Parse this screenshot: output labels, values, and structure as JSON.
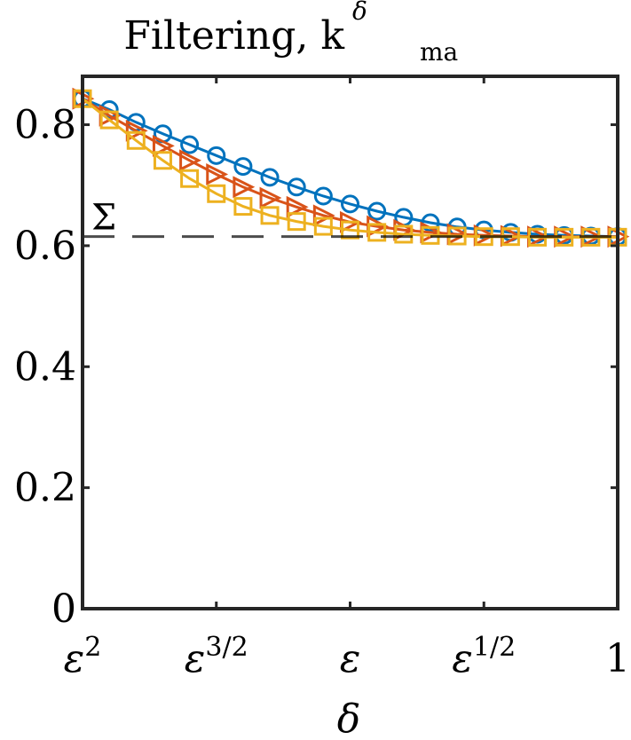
{
  "chart_data": {
    "type": "line",
    "title": "Filtering, k",
    "title_superscript": "δ",
    "title_subscript": "ma",
    "xlabel": "δ",
    "ylabel": "",
    "ylim": [
      0,
      0.88
    ],
    "yticks": [
      0,
      0.2,
      0.4,
      0.6,
      0.8
    ],
    "ytick_labels": [
      "0",
      "0.2",
      "0.4",
      "0.6",
      "0.8"
    ],
    "xtick_labels": [
      {
        "base": "ε",
        "exp": "2"
      },
      {
        "base": "ε",
        "exp": "3/2"
      },
      {
        "base": "ε",
        "exp": ""
      },
      {
        "base": "ε",
        "exp": "1/2"
      },
      {
        "base": "1",
        "exp": ""
      }
    ],
    "x_scale": "log (powers of ε)",
    "x_exponents": [
      2,
      1.9,
      1.8,
      1.7,
      1.6,
      1.5,
      1.4,
      1.3,
      1.2,
      1.1,
      1.0,
      0.9,
      0.8,
      0.7,
      0.6,
      0.5,
      0.4,
      0.3,
      0.2,
      0.1,
      0.0
    ],
    "reference_line": {
      "label": "Σ",
      "value": 0.615,
      "style": "dashed"
    },
    "grid": false,
    "series": [
      {
        "marker": "circle",
        "color": "#0072BD",
        "values": [
          0.843,
          0.825,
          0.804,
          0.785,
          0.767,
          0.749,
          0.731,
          0.713,
          0.697,
          0.682,
          0.669,
          0.657,
          0.647,
          0.638,
          0.631,
          0.626,
          0.622,
          0.619,
          0.617,
          0.616,
          0.615
        ]
      },
      {
        "marker": "triangle-right",
        "color": "#D95319",
        "values": [
          0.843,
          0.815,
          0.79,
          0.765,
          0.741,
          0.718,
          0.697,
          0.679,
          0.664,
          0.65,
          0.639,
          0.632,
          0.626,
          0.622,
          0.619,
          0.617,
          0.616,
          0.615,
          0.615,
          0.615,
          0.615
        ]
      },
      {
        "marker": "square",
        "color": "#EDB120",
        "values": [
          0.843,
          0.808,
          0.774,
          0.741,
          0.711,
          0.686,
          0.665,
          0.65,
          0.64,
          0.632,
          0.626,
          0.622,
          0.619,
          0.617,
          0.616,
          0.615,
          0.615,
          0.614,
          0.614,
          0.614,
          0.614
        ]
      }
    ]
  }
}
